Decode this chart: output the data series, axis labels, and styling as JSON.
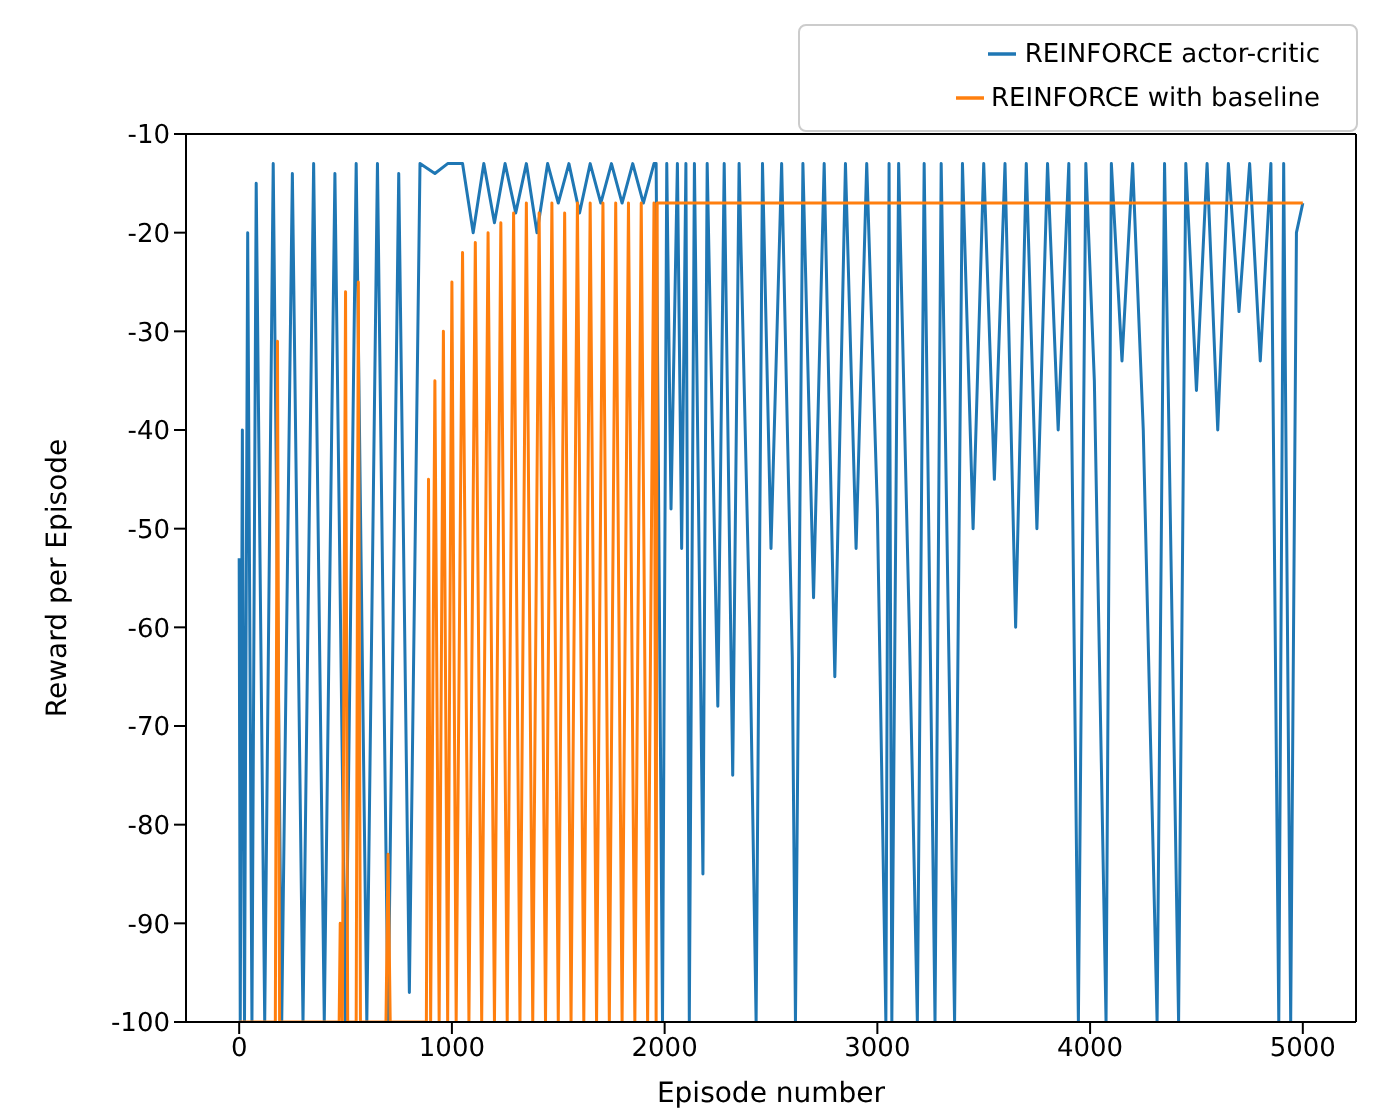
{
  "chart_data": {
    "type": "line",
    "xlabel": "Episode number",
    "ylabel": "Reward per Episode",
    "xlim": [
      -250,
      5250
    ],
    "xticks": [
      0,
      1000,
      2000,
      3000,
      4000,
      5000
    ],
    "ylim": [
      -100,
      -10
    ],
    "yticks": [
      -100,
      -90,
      -80,
      -70,
      -60,
      -50,
      -40,
      -30,
      -20,
      -10
    ],
    "grid": false,
    "legend": "top right",
    "marker": "none",
    "line_style": "solid",
    "series": [
      {
        "name": "REINFORCE actor-critic",
        "color": "#1f77b4",
        "x": [
          0,
          5,
          15,
          25,
          40,
          60,
          80,
          120,
          160,
          200,
          250,
          300,
          350,
          400,
          450,
          500,
          550,
          600,
          650,
          700,
          750,
          800,
          850,
          920,
          980,
          1050,
          1100,
          1150,
          1200,
          1250,
          1300,
          1350,
          1400,
          1450,
          1500,
          1550,
          1600,
          1650,
          1700,
          1750,
          1800,
          1850,
          1900,
          1950,
          1960,
          1970,
          1990,
          2010,
          2030,
          2060,
          2080,
          2100,
          2116,
          2140,
          2180,
          2200,
          2250,
          2280,
          2320,
          2350,
          2400,
          2430,
          2460,
          2500,
          2550,
          2600,
          2615,
          2650,
          2700,
          2750,
          2800,
          2850,
          2900,
          2950,
          3000,
          3040,
          3055,
          3068,
          3100,
          3150,
          3188,
          3220,
          3271,
          3300,
          3363,
          3400,
          3450,
          3500,
          3550,
          3600,
          3650,
          3700,
          3750,
          3800,
          3850,
          3900,
          3945,
          3980,
          4020,
          4075,
          4100,
          4150,
          4200,
          4250,
          4315,
          4350,
          4416,
          4450,
          4500,
          4550,
          4600,
          4650,
          4700,
          4750,
          4800,
          4850,
          4887,
          4910,
          4943,
          4970,
          5000
        ],
        "values": [
          -53,
          -100,
          -40,
          -100,
          -20,
          -100,
          -15,
          -100,
          -13,
          -100,
          -14,
          -100,
          -13,
          -100,
          -14,
          -100,
          -13,
          -100,
          -13,
          -100,
          -14,
          -97,
          -13,
          -14,
          -13,
          -13,
          -20,
          -13,
          -19,
          -13,
          -18,
          -13,
          -20,
          -13,
          -17,
          -13,
          -18,
          -13,
          -17,
          -13,
          -17,
          -13,
          -17,
          -13,
          -13,
          -42,
          -100,
          -13,
          -48,
          -13,
          -52,
          -13,
          -100,
          -13,
          -85,
          -13,
          -68,
          -13,
          -75,
          -13,
          -60,
          -100,
          -13,
          -52,
          -13,
          -63,
          -100,
          -13,
          -57,
          -13,
          -65,
          -13,
          -52,
          -13,
          -48,
          -100,
          -13,
          -100,
          -13,
          -60,
          -100,
          -13,
          -100,
          -13,
          -100,
          -13,
          -50,
          -13,
          -45,
          -13,
          -60,
          -13,
          -50,
          -13,
          -40,
          -13,
          -100,
          -13,
          -35,
          -100,
          -13,
          -33,
          -13,
          -40,
          -100,
          -13,
          -100,
          -13,
          -36,
          -13,
          -40,
          -13,
          -28,
          -13,
          -33,
          -13,
          -100,
          -13,
          -100,
          -20,
          -17
        ]
      },
      {
        "name": "REINFORCE with baseline",
        "color": "#ff7f0e",
        "x": [
          0,
          170,
          180,
          190,
          470,
          475,
          485,
          500,
          510,
          550,
          560,
          570,
          690,
          700,
          710,
          880,
          890,
          900,
          920,
          940,
          960,
          980,
          1000,
          1020,
          1050,
          1080,
          1110,
          1140,
          1170,
          1200,
          1230,
          1260,
          1290,
          1320,
          1350,
          1380,
          1410,
          1440,
          1470,
          1500,
          1530,
          1560,
          1590,
          1620,
          1650,
          1680,
          1710,
          1740,
          1770,
          1800,
          1830,
          1860,
          1890,
          1920,
          1950,
          1960,
          1965,
          5000
        ],
        "values": [
          -100,
          -100,
          -31,
          -100,
          -100,
          -90,
          -100,
          -26,
          -100,
          -100,
          -25,
          -100,
          -100,
          -83,
          -100,
          -100,
          -45,
          -100,
          -35,
          -100,
          -30,
          -100,
          -25,
          -100,
          -22,
          -100,
          -21,
          -100,
          -20,
          -100,
          -19,
          -100,
          -18,
          -100,
          -17,
          -100,
          -18,
          -100,
          -17,
          -100,
          -18,
          -100,
          -17,
          -100,
          -17,
          -100,
          -17,
          -100,
          -17,
          -100,
          -17,
          -100,
          -17,
          -100,
          -17,
          -100,
          -17,
          -17
        ]
      }
    ]
  }
}
